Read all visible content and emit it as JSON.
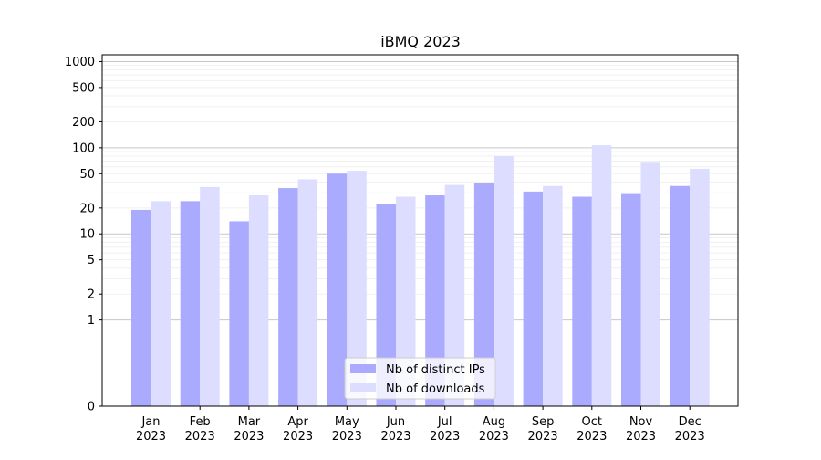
{
  "chart_data": {
    "type": "bar",
    "title": "iBMQ 2023",
    "xlabel": "",
    "ylabel": "",
    "yscale": "symlog",
    "ylim": [
      0,
      1200
    ],
    "grid": "horizontal",
    "legend_position": "bottom-center",
    "categories": [
      "Jan\n2023",
      "Feb\n2023",
      "Mar\n2023",
      "Apr\n2023",
      "May\n2023",
      "Jun\n2023",
      "Jul\n2023",
      "Aug\n2023",
      "Sep\n2023",
      "Oct\n2023",
      "Nov\n2023",
      "Dec\n2023"
    ],
    "y_ticks": [
      0,
      1,
      2,
      5,
      10,
      20,
      50,
      100,
      200,
      500,
      1000
    ],
    "series": [
      {
        "name": "Nb of distinct IPs",
        "color": "#aaaaff",
        "values": [
          19,
          24,
          14,
          34,
          50,
          22,
          28,
          39,
          31,
          27,
          29,
          36
        ]
      },
      {
        "name": "Nb of downloads",
        "color": "#ddddff",
        "values": [
          24,
          35,
          28,
          43,
          54,
          27,
          37,
          80,
          36,
          107,
          67,
          57
        ]
      }
    ]
  }
}
